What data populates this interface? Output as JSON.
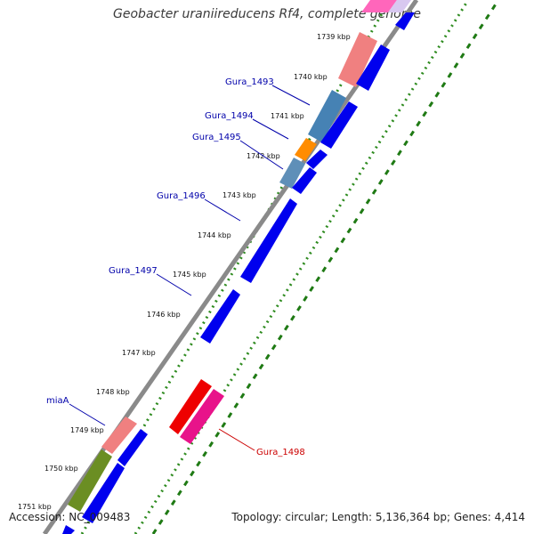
{
  "title": "Geobacter uraniireducens Rf4, complete genome",
  "accession": "Accession: NC_009483",
  "summary": "Topology: circular; Length: 5,136,364 bp; Genes: 4,414",
  "ticks": [
    "1739 kbp",
    "1740 kbp",
    "1741 kbp",
    "1742 kbp",
    "1743 kbp",
    "1744 kbp",
    "1745 kbp",
    "1746 kbp",
    "1747 kbp",
    "1748 kbp",
    "1749 kbp",
    "1750 kbp",
    "1751 kbp"
  ],
  "colors": {
    "forward_gene": "#0000ee",
    "backbone": "#8a8a8a",
    "dotted_ring": "#2e8b1f",
    "label_blue": "#0000aa",
    "label_red": "#cc0000",
    "pink": "#f08080",
    "steel": "#4682b4",
    "orange": "#ff8c00",
    "olive": "#6b8e23",
    "red": "#ee0000",
    "magenta": "#e8138a"
  },
  "labels": {
    "gura_1493": "Gura_1493",
    "gura_1494": "Gura_1494",
    "gura_1495": "Gura_1495",
    "gura_1496": "Gura_1496",
    "gura_1497": "Gura_1497",
    "miaA": "miaA",
    "gura_1498": "Gura_1498"
  }
}
